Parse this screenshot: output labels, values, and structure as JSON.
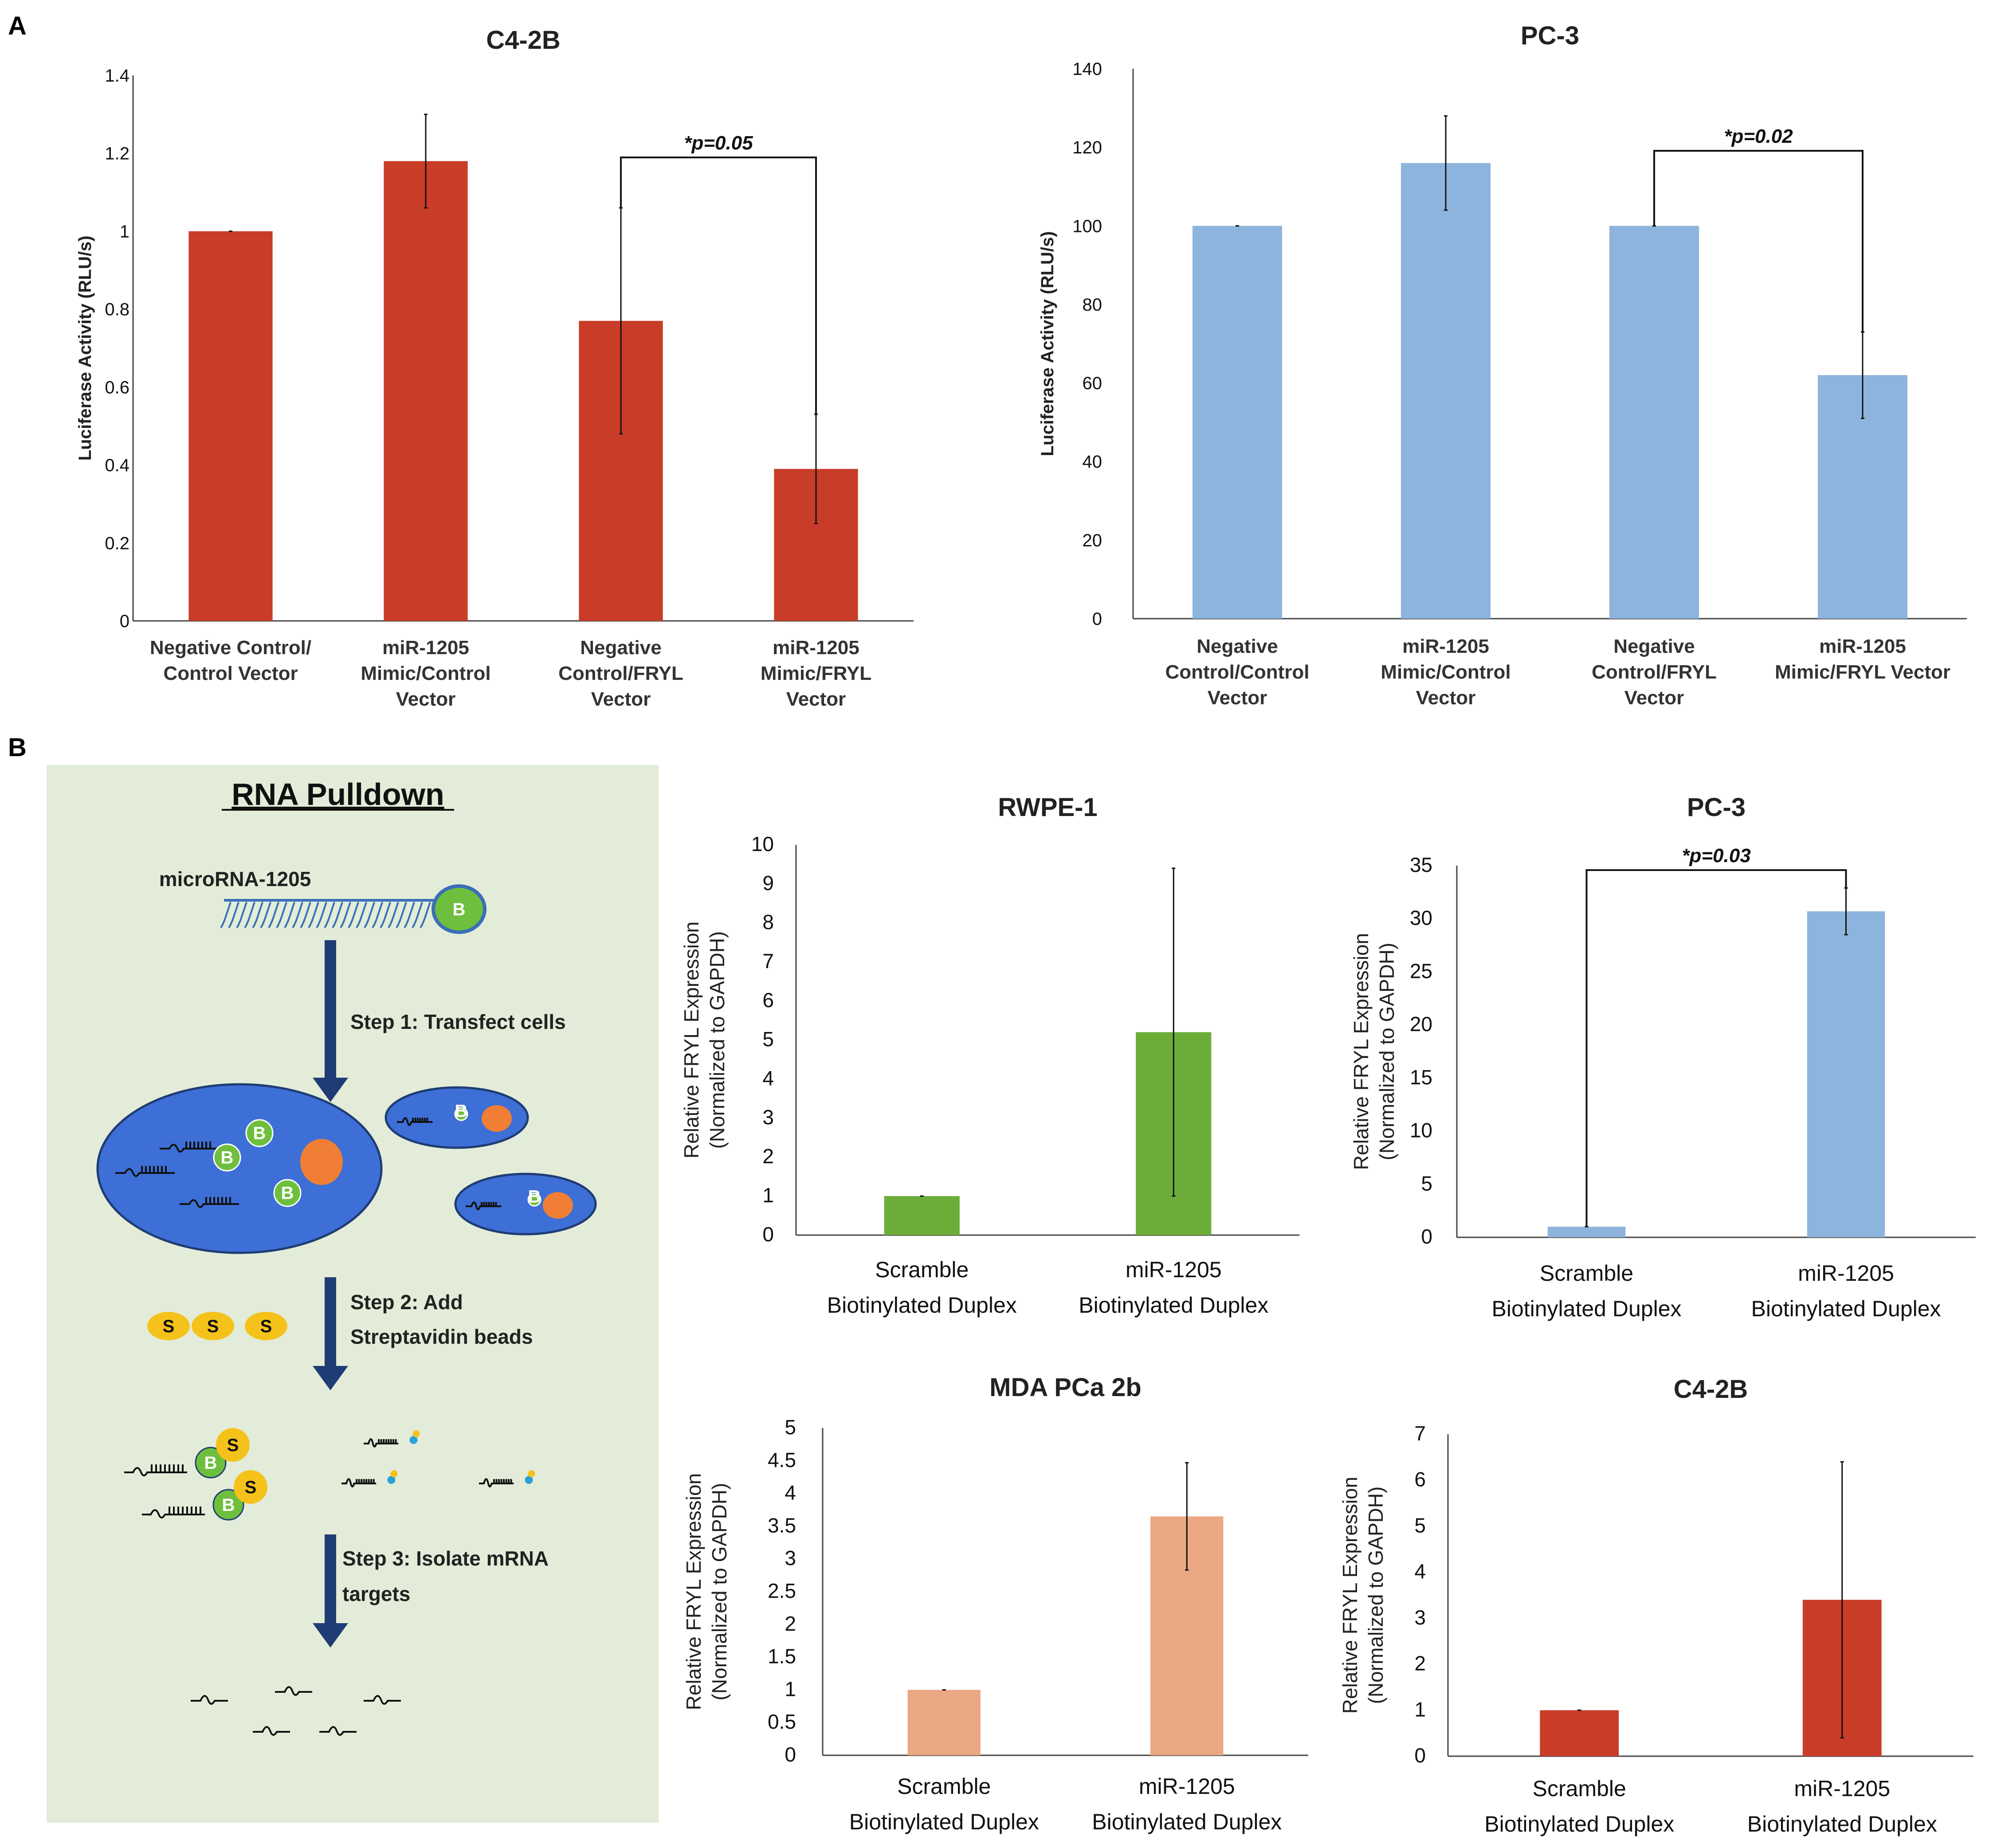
{
  "panel_labels": {
    "a": "A",
    "b": "B"
  },
  "diagram": {
    "title": "RNA Pulldown",
    "mirna_label": "microRNA-1205",
    "step1": "Step 1: Transfect cells",
    "step2_line1": "Step 2: Add",
    "step2_line2": "Streptavidin beads",
    "step3_line1": "Step 3: Isolate mRNA",
    "step3_line2": "targets",
    "biotin_letter": "B",
    "strep_letter": "S",
    "colors": {
      "background": "#e3ecd8",
      "cell": "#3d6fd6",
      "nucleus": "#f07e34",
      "biotin": "#6fbf3e",
      "bead": "#f5c21b",
      "arrow": "#1f3c74"
    }
  },
  "chart_data": [
    {
      "id": "a_c42b",
      "type": "bar",
      "title": "C4-2B",
      "ylabel": "Luciferase Activity (RLU/s)",
      "xlabel": "",
      "ylim": [
        0,
        1.4
      ],
      "yticks": [
        "0",
        "0.2",
        "0.4",
        "0.6",
        "0.8",
        "1",
        "1.2",
        "1.4"
      ],
      "categories": [
        [
          "Negative Control/",
          "Control Vector"
        ],
        [
          "miR-1205",
          "Mimic/Control",
          "Vector"
        ],
        [
          "Negative",
          "Control/FRYL",
          "Vector"
        ],
        [
          "miR-1205",
          "Mimic/FRYL",
          "Vector"
        ]
      ],
      "values": [
        1.0,
        1.18,
        0.77,
        0.39
      ],
      "errors": [
        0.0,
        0.12,
        0.29,
        0.14
      ],
      "color": "#c83c28",
      "significance": {
        "text": "*p=0.05",
        "from": 2,
        "to": 3
      }
    },
    {
      "id": "a_pc3",
      "type": "bar",
      "title": "PC-3",
      "ylabel": "Luciferase Activity (RLU/s)",
      "xlabel": "",
      "ylim": [
        0,
        140
      ],
      "yticks": [
        "0",
        "20",
        "40",
        "60",
        "80",
        "100",
        "120",
        "140"
      ],
      "categories": [
        [
          "Negative",
          "Control/Control",
          "Vector"
        ],
        [
          "miR-1205",
          "Mimic/Control",
          "Vector"
        ],
        [
          "Negative",
          "Control/FRYL",
          "Vector"
        ],
        [
          "miR-1205",
          "Mimic/FRYL Vector"
        ]
      ],
      "values": [
        100,
        116,
        100,
        62
      ],
      "errors": [
        0,
        12,
        0,
        11
      ],
      "color": "#8db4dc",
      "significance": {
        "text": "*p=0.02",
        "from": 2,
        "to": 3
      }
    },
    {
      "id": "b_rwpe1",
      "type": "bar",
      "title": "RWPE-1",
      "ylabel": [
        "Relative FRYL Expression",
        "(Normalized to GAPDH)"
      ],
      "xlabel": "",
      "ylim": [
        0,
        10
      ],
      "yticks": [
        "0",
        "1",
        "2",
        "3",
        "4",
        "5",
        "6",
        "7",
        "8",
        "9",
        "10"
      ],
      "categories": [
        [
          "Scramble",
          "Biotinylated Duplex"
        ],
        [
          "miR-1205",
          "Biotinylated Duplex"
        ]
      ],
      "values": [
        1.0,
        5.2
      ],
      "errors": [
        0.0,
        4.2
      ],
      "color": "#6cad3a"
    },
    {
      "id": "b_pc3",
      "type": "bar",
      "title": "PC-3",
      "ylabel": [
        "Relative FRYL Expression",
        "(Normalized to GAPDH)"
      ],
      "xlabel": "",
      "ylim": [
        0,
        35
      ],
      "yticks": [
        "0",
        "5",
        "10",
        "15",
        "20",
        "25",
        "30",
        "35"
      ],
      "categories": [
        [
          "Scramble",
          "Biotinylated Duplex"
        ],
        [
          "miR-1205",
          "Biotinylated Duplex"
        ]
      ],
      "values": [
        1.0,
        30.7
      ],
      "errors": [
        0.0,
        2.2
      ],
      "color": "#8db4dc",
      "significance": {
        "text": "*p=0.03",
        "from": 0,
        "to": 1
      }
    },
    {
      "id": "b_mda",
      "type": "bar",
      "title": "MDA PCa 2b",
      "ylabel": [
        "Relative FRYL Expression",
        "(Normalized to GAPDH)"
      ],
      "xlabel": "",
      "ylim": [
        0,
        5
      ],
      "yticks": [
        "0",
        "0.5",
        "1",
        "1.5",
        "2",
        "2.5",
        "3",
        "3.5",
        "4",
        "4.5",
        "5"
      ],
      "categories": [
        [
          "Scramble",
          "Biotinylated Duplex"
        ],
        [
          "miR-1205",
          "Biotinylated Duplex"
        ]
      ],
      "values": [
        1.0,
        3.65
      ],
      "errors": [
        0.0,
        0.82
      ],
      "color": "#eaa784"
    },
    {
      "id": "b_c42b",
      "type": "bar",
      "title": "C4-2B",
      "ylabel": [
        "Relative FRYL Expression",
        "(Normalized to GAPDH)"
      ],
      "xlabel": "",
      "ylim": [
        0,
        7
      ],
      "yticks": [
        "0",
        "1",
        "2",
        "3",
        "4",
        "5",
        "6",
        "7"
      ],
      "categories": [
        [
          "Scramble",
          "Biotinylated Duplex"
        ],
        [
          "miR-1205",
          "Biotinylated Duplex"
        ]
      ],
      "values": [
        1.0,
        3.4
      ],
      "errors": [
        0.0,
        3.0
      ],
      "color": "#c83c28"
    }
  ]
}
